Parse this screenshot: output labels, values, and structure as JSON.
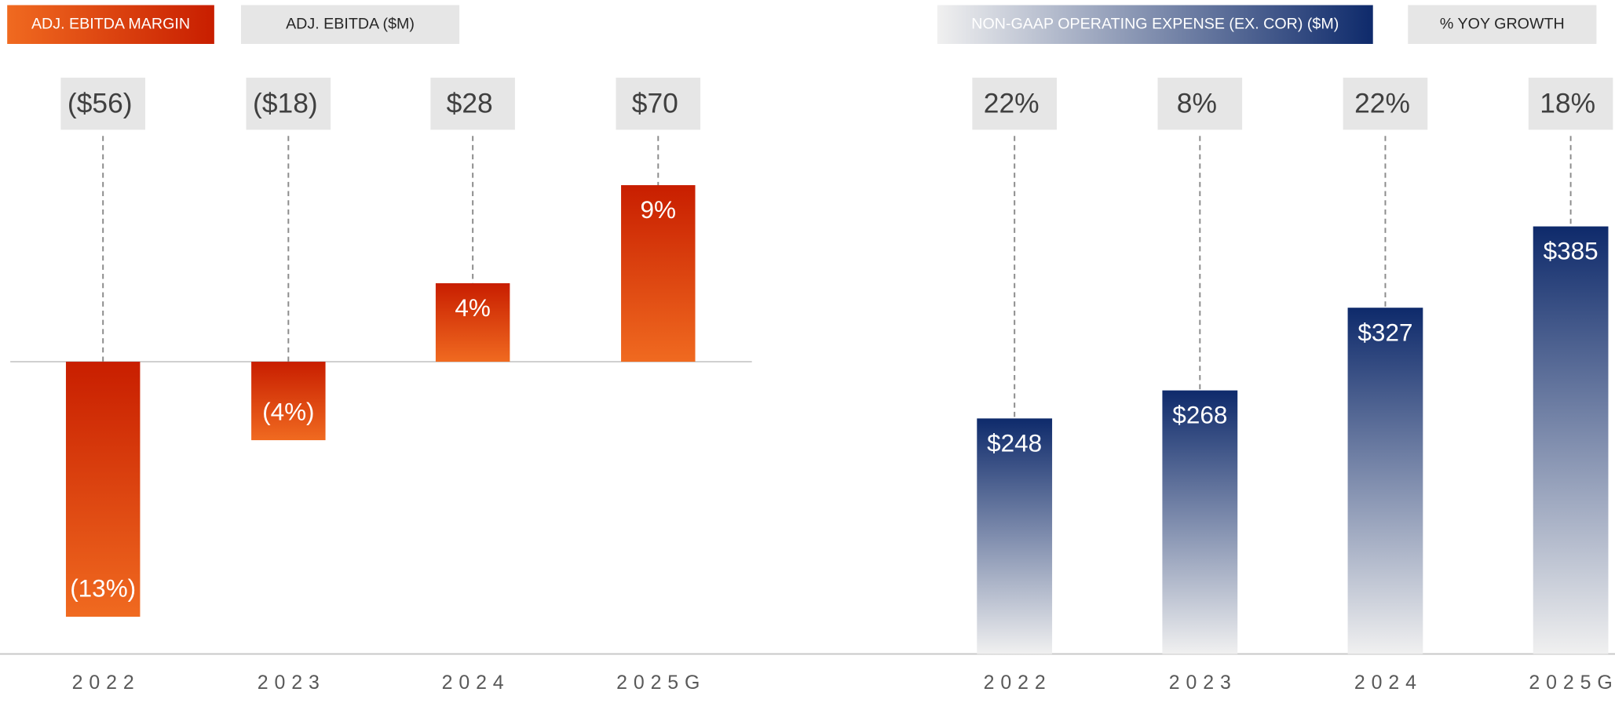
{
  "chart_data": [
    {
      "type": "bar",
      "categories": [
        "2022",
        "2023",
        "2024",
        "2025G"
      ],
      "series": [
        {
          "name": "ADJ. EBITDA MARGIN",
          "color": [
            "#c81e00",
            "#f06a20"
          ],
          "values": [
            -13,
            -4,
            4,
            9
          ],
          "value_labels": [
            "(13%)",
            "(4%)",
            "4%",
            "9%"
          ]
        },
        {
          "name": "ADJ. EBITDA ($M)",
          "color": "#e6e6e6",
          "values": [
            -56,
            -18,
            28,
            70
          ],
          "value_labels": [
            "($56)",
            "($18)",
            "$28",
            "$70"
          ]
        }
      ],
      "ylim": [
        -15,
        10
      ]
    },
    {
      "type": "bar",
      "categories": [
        "2022",
        "2023",
        "2024",
        "2025G"
      ],
      "series": [
        {
          "name": "NON-GAAP OPERATING EXPENSE (EX. COR) ($M)",
          "color": [
            "#0e2a6b",
            "#f0f0f0"
          ],
          "values": [
            248,
            268,
            327,
            385
          ],
          "value_labels": [
            "$248",
            "$268",
            "$327",
            "$385"
          ]
        },
        {
          "name": "% YOY GROWTH",
          "color": "#e6e6e6",
          "values": [
            22,
            8,
            22,
            18
          ],
          "value_labels": [
            "22%",
            "8%",
            "22%",
            "18%"
          ]
        }
      ],
      "ylim": [
        80,
        400
      ]
    }
  ]
}
